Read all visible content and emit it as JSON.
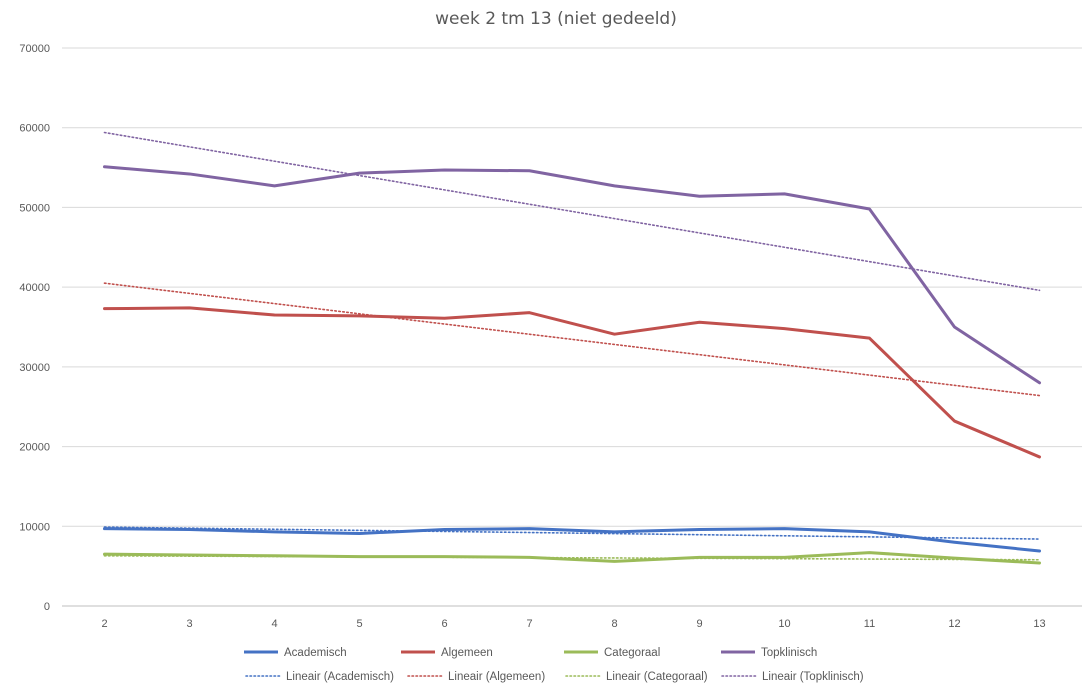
{
  "chart_data": {
    "type": "line",
    "title": "week 2 tm 13 (niet gedeeld)",
    "xlabel": "",
    "ylabel": "",
    "x": [
      2,
      3,
      4,
      5,
      6,
      7,
      8,
      9,
      10,
      11,
      12,
      13
    ],
    "ylim": [
      0,
      70000
    ],
    "yticks": [
      0,
      10000,
      20000,
      30000,
      40000,
      50000,
      60000,
      70000
    ],
    "grid": "horizontal",
    "legend_position": "bottom",
    "series": [
      {
        "name": "Academisch",
        "color": "#4472c4",
        "style": "solid",
        "values": [
          9700,
          9600,
          9300,
          9100,
          9600,
          9700,
          9300,
          9600,
          9700,
          9300,
          8000,
          6900
        ]
      },
      {
        "name": "Algemeen",
        "color": "#c0504d",
        "style": "solid",
        "values": [
          37300,
          37400,
          36500,
          36400,
          36100,
          36800,
          34100,
          35600,
          34800,
          33600,
          23200,
          18700
        ]
      },
      {
        "name": "Categoraal",
        "color": "#9bbb59",
        "style": "solid",
        "values": [
          6500,
          6400,
          6300,
          6200,
          6200,
          6100,
          5600,
          6100,
          6100,
          6700,
          6000,
          5400
        ]
      },
      {
        "name": "Topklinisch",
        "color": "#8064a2",
        "style": "solid",
        "values": [
          55100,
          54200,
          52700,
          54300,
          54700,
          54600,
          52700,
          51400,
          51700,
          49800,
          35000,
          28000
        ]
      }
    ],
    "trendlines": [
      {
        "name": "Lineair (Academisch)",
        "color": "#4472c4",
        "style": "dotted",
        "y_start": 9900,
        "y_end": 8400
      },
      {
        "name": "Lineair (Algemeen)",
        "color": "#c0504d",
        "style": "dotted",
        "y_start": 40500,
        "y_end": 26400
      },
      {
        "name": "Lineair (Categoraal)",
        "color": "#9bbb59",
        "style": "dotted",
        "y_start": 6300,
        "y_end": 5800
      },
      {
        "name": "Lineair (Topklinisch)",
        "color": "#8064a2",
        "style": "dotted",
        "y_start": 59400,
        "y_end": 39600
      }
    ]
  }
}
